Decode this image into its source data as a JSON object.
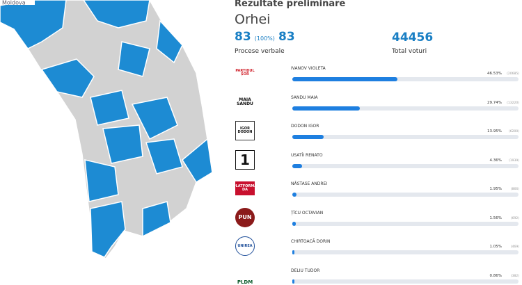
{
  "map_label": "Moldova",
  "panel": {
    "title": "Rezultate preliminare",
    "district": "Orhei",
    "reports_done": "83",
    "reports_percent": "(100%)",
    "reports_total": "83",
    "reports_caption": "Procese verbale",
    "total_votes": "44456",
    "total_votes_caption": "Total voturi"
  },
  "candidates": [
    {
      "logo": "PARTIDUL ȘOR",
      "name": "IVANOV VIOLETA",
      "percent": 46.53,
      "percent_label": "46.53%",
      "votes_label": "(20685)"
    },
    {
      "logo": "MAIA SANDU",
      "name": "SANDU MAIA",
      "percent": 29.74,
      "percent_label": "29.74%",
      "votes_label": "(13220)"
    },
    {
      "logo": "IGOR DODON",
      "name": "DODON IGOR",
      "percent": 13.95,
      "percent_label": "13.95%",
      "votes_label": "(6200)"
    },
    {
      "logo": "1",
      "name": "USATÎI RENATO",
      "percent": 4.36,
      "percent_label": "4.36%",
      "votes_label": "(1939)"
    },
    {
      "logo": "PLATFORMA DA",
      "name": "NĂSTASE ANDREI",
      "percent": 1.95,
      "percent_label": "1.95%",
      "votes_label": "(866)"
    },
    {
      "logo": "PUN",
      "name": "ȚÎCU OCTAVIAN",
      "percent": 1.56,
      "percent_label": "1.56%",
      "votes_label": "(692)"
    },
    {
      "logo": "UNIREA",
      "name": "CHIRTOACĂ DORIN",
      "percent": 1.05,
      "percent_label": "1.05%",
      "votes_label": "(469)"
    },
    {
      "logo": "PLDM",
      "name": "DELIU TUDOR",
      "percent": 0.86,
      "percent_label": "0.86%",
      "votes_label": "(382)"
    }
  ]
}
